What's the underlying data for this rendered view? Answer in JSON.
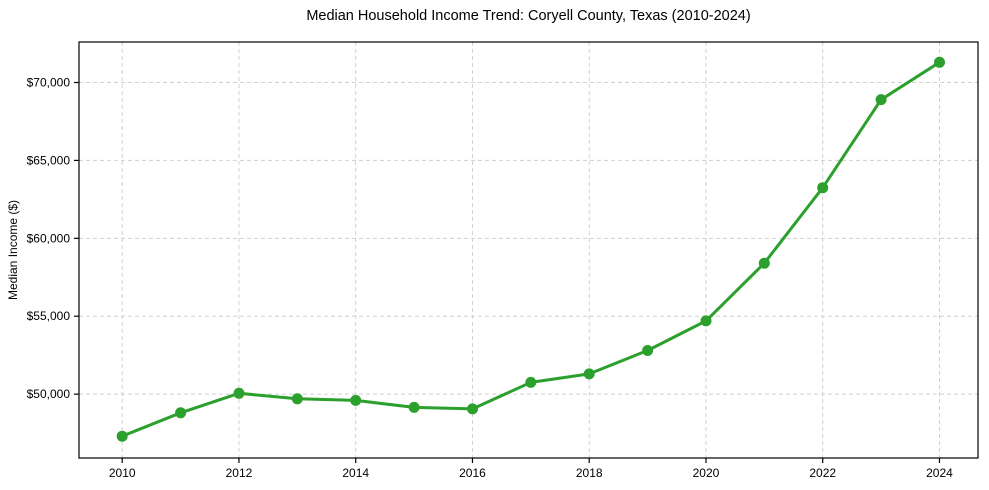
{
  "chart_data": {
    "type": "line",
    "title": "Median Household Income Trend: Coryell County, Texas (2010-2024)",
    "xlabel": "",
    "ylabel": "Median Income ($)",
    "x": [
      2010,
      2011,
      2012,
      2013,
      2014,
      2015,
      2016,
      2017,
      2018,
      2019,
      2020,
      2021,
      2022,
      2023,
      2024
    ],
    "values": [
      47300,
      48800,
      50050,
      49700,
      49600,
      49150,
      49050,
      50750,
      51300,
      52800,
      54700,
      58400,
      63250,
      68900,
      71300
    ],
    "xlim": [
      2009.26,
      2024.66
    ],
    "ylim": [
      45900,
      72600
    ],
    "xticks": {
      "values": [
        2010,
        2012,
        2014,
        2016,
        2018,
        2020,
        2022,
        2024
      ],
      "labels": [
        "2010",
        "2012",
        "2014",
        "2016",
        "2018",
        "2020",
        "2022",
        "2024"
      ]
    },
    "yticks": {
      "values": [
        50000,
        55000,
        60000,
        65000,
        70000
      ],
      "labels": [
        "$50,000",
        "$55,000",
        "$60,000",
        "$65,000",
        "$70,000"
      ]
    },
    "grid": {
      "show": true,
      "style": "dashed",
      "color": "#d0d0d0"
    },
    "legend": {
      "show": false
    },
    "line_color": "#2ca02c",
    "marker_color": "#2ca02c",
    "axis_color": "#000000",
    "text_color": "#000000",
    "background_color": "#ffffff"
  }
}
